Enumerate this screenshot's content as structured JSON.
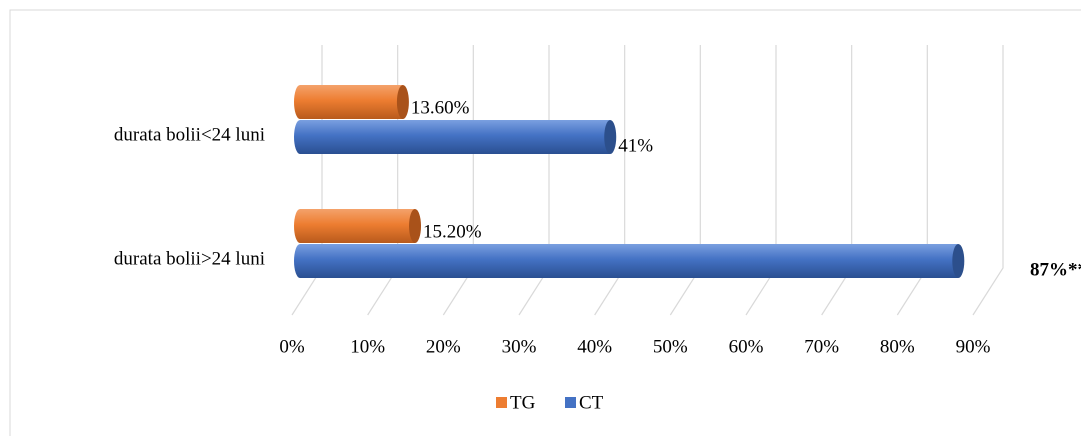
{
  "chart_data": {
    "type": "bar",
    "orientation": "horizontal",
    "categories": [
      "durata bolii<24 luni",
      "durata bolii>24 luni"
    ],
    "series": [
      {
        "name": "TG",
        "color": "#ed7d31",
        "values": [
          13.6,
          15.2
        ],
        "value_labels": [
          "13.60%",
          "15.20%"
        ]
      },
      {
        "name": "CT",
        "color": "#4472c4",
        "values": [
          41,
          87
        ],
        "value_labels": [
          "41%",
          "87%**"
        ]
      }
    ],
    "xlim": [
      0,
      90
    ],
    "xticks": [
      {
        "value": 0,
        "label": "0%"
      },
      {
        "value": 10,
        "label": "10%"
      },
      {
        "value": 20,
        "label": "20%"
      },
      {
        "value": 30,
        "label": "30%"
      },
      {
        "value": 40,
        "label": "40%"
      },
      {
        "value": 50,
        "label": "50%"
      },
      {
        "value": 60,
        "label": "60%"
      },
      {
        "value": 70,
        "label": "70%"
      },
      {
        "value": 80,
        "label": "80%"
      },
      {
        "value": 90,
        "label": "90%"
      }
    ],
    "grid": true,
    "legend": "bottom"
  }
}
